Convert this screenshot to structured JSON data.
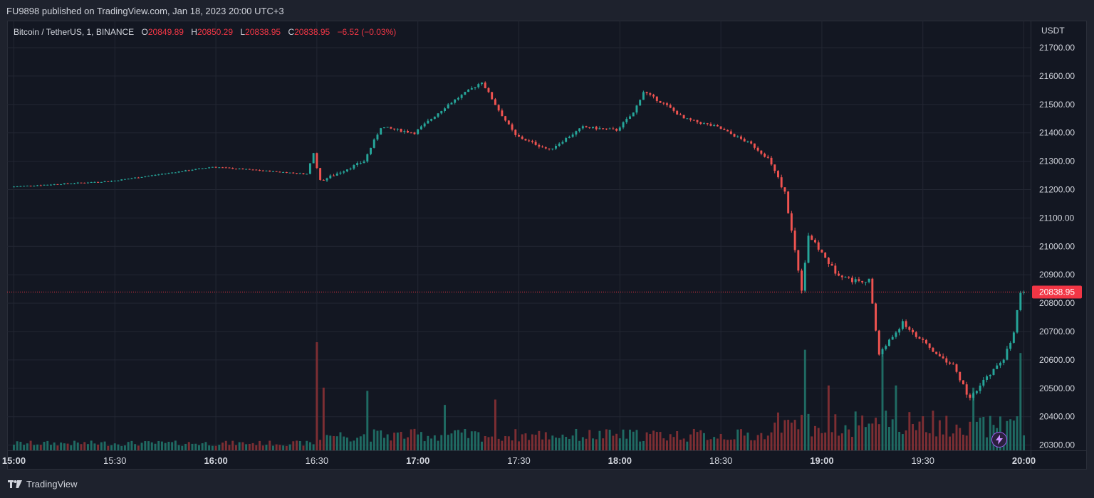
{
  "header": {
    "publisher": "FU9898 published on TradingView.com, Jan 18, 2023 20:00 UTC+3"
  },
  "legend": {
    "symbol": "Bitcoin / TetherUS, 1, BINANCE",
    "o_label": "O",
    "o_value": "20849.89",
    "h_label": "H",
    "h_value": "20850.29",
    "l_label": "L",
    "l_value": "20838.95",
    "c_label": "C",
    "c_value": "20838.95",
    "change": "−6.52 (−0.03%)"
  },
  "price_axis": {
    "currency": "USDT",
    "labels": [
      "21700.00",
      "21600.00",
      "21500.00",
      "21400.00",
      "21300.00",
      "21200.00",
      "21100.00",
      "21000.00",
      "20900.00",
      "20800.00",
      "20700.00",
      "20600.00",
      "20500.00",
      "20400.00",
      "20300.00"
    ]
  },
  "time_axis": {
    "labels": [
      "15:00",
      "15:30",
      "16:00",
      "16:30",
      "17:00",
      "17:30",
      "18:00",
      "18:30",
      "19:00",
      "19:30",
      "20:00"
    ],
    "bold": [
      true,
      false,
      true,
      false,
      true,
      false,
      true,
      false,
      true,
      false,
      true
    ]
  },
  "last_price": {
    "value": "20838.95",
    "color": "#f23645"
  },
  "footer": {
    "brand": "TradingView"
  },
  "colors": {
    "up": "#26a69a",
    "down": "#ef5350",
    "up_volume": "#1f6b63",
    "down_volume": "#7d2e33",
    "grid": "#232733",
    "background": "#131722"
  },
  "chart_data": {
    "type": "candlestick",
    "interval": "1m",
    "x_range": [
      "14:58",
      "20:02"
    ],
    "ylim": [
      20280,
      21760
    ],
    "grid": true,
    "key_points": [
      {
        "time": "15:00",
        "price": 21210
      },
      {
        "time": "15:30",
        "price": 21230
      },
      {
        "time": "16:00",
        "price": 21280
      },
      {
        "time": "16:28",
        "price": 21255
      },
      {
        "time": "16:30",
        "price": 21330
      },
      {
        "time": "16:32",
        "price": 21230
      },
      {
        "time": "16:45",
        "price": 21300
      },
      {
        "time": "16:50",
        "price": 21420
      },
      {
        "time": "17:00",
        "price": 21400
      },
      {
        "time": "17:10",
        "price": 21500
      },
      {
        "time": "17:20",
        "price": 21580
      },
      {
        "time": "17:25",
        "price": 21480
      },
      {
        "time": "17:30",
        "price": 21390
      },
      {
        "time": "17:40",
        "price": 21340
      },
      {
        "time": "17:50",
        "price": 21420
      },
      {
        "time": "18:00",
        "price": 21410
      },
      {
        "time": "18:05",
        "price": 21470
      },
      {
        "time": "18:08",
        "price": 21545
      },
      {
        "time": "18:15",
        "price": 21495
      },
      {
        "time": "18:20",
        "price": 21450
      },
      {
        "time": "18:30",
        "price": 21420
      },
      {
        "time": "18:40",
        "price": 21360
      },
      {
        "time": "18:45",
        "price": 21310
      },
      {
        "time": "18:50",
        "price": 21190
      },
      {
        "time": "18:55",
        "price": 20850
      },
      {
        "time": "18:57",
        "price": 21040
      },
      {
        "time": "19:05",
        "price": 20910
      },
      {
        "time": "19:10",
        "price": 20880
      },
      {
        "time": "19:15",
        "price": 20880
      },
      {
        "time": "19:18",
        "price": 20620
      },
      {
        "time": "19:25",
        "price": 20730
      },
      {
        "time": "19:35",
        "price": 20620
      },
      {
        "time": "19:40",
        "price": 20580
      },
      {
        "time": "19:45",
        "price": 20460
      },
      {
        "time": "19:50",
        "price": 20540
      },
      {
        "time": "19:55",
        "price": 20600
      },
      {
        "time": "19:58",
        "price": 20700
      },
      {
        "time": "20:00",
        "price": 20838.95
      }
    ],
    "volume_spikes": [
      {
        "time": "16:30",
        "relative": 1.0
      },
      {
        "time": "16:32",
        "relative": 0.58
      },
      {
        "time": "16:45",
        "relative": 0.55
      },
      {
        "time": "17:08",
        "relative": 0.42
      },
      {
        "time": "17:23",
        "relative": 0.47
      },
      {
        "time": "18:55",
        "relative": 0.93
      },
      {
        "time": "19:02",
        "relative": 0.6
      },
      {
        "time": "19:18",
        "relative": 0.88
      },
      {
        "time": "19:22",
        "relative": 0.6
      },
      {
        "time": "19:45",
        "relative": 0.58
      },
      {
        "time": "19:59",
        "relative": 0.9
      }
    ]
  }
}
